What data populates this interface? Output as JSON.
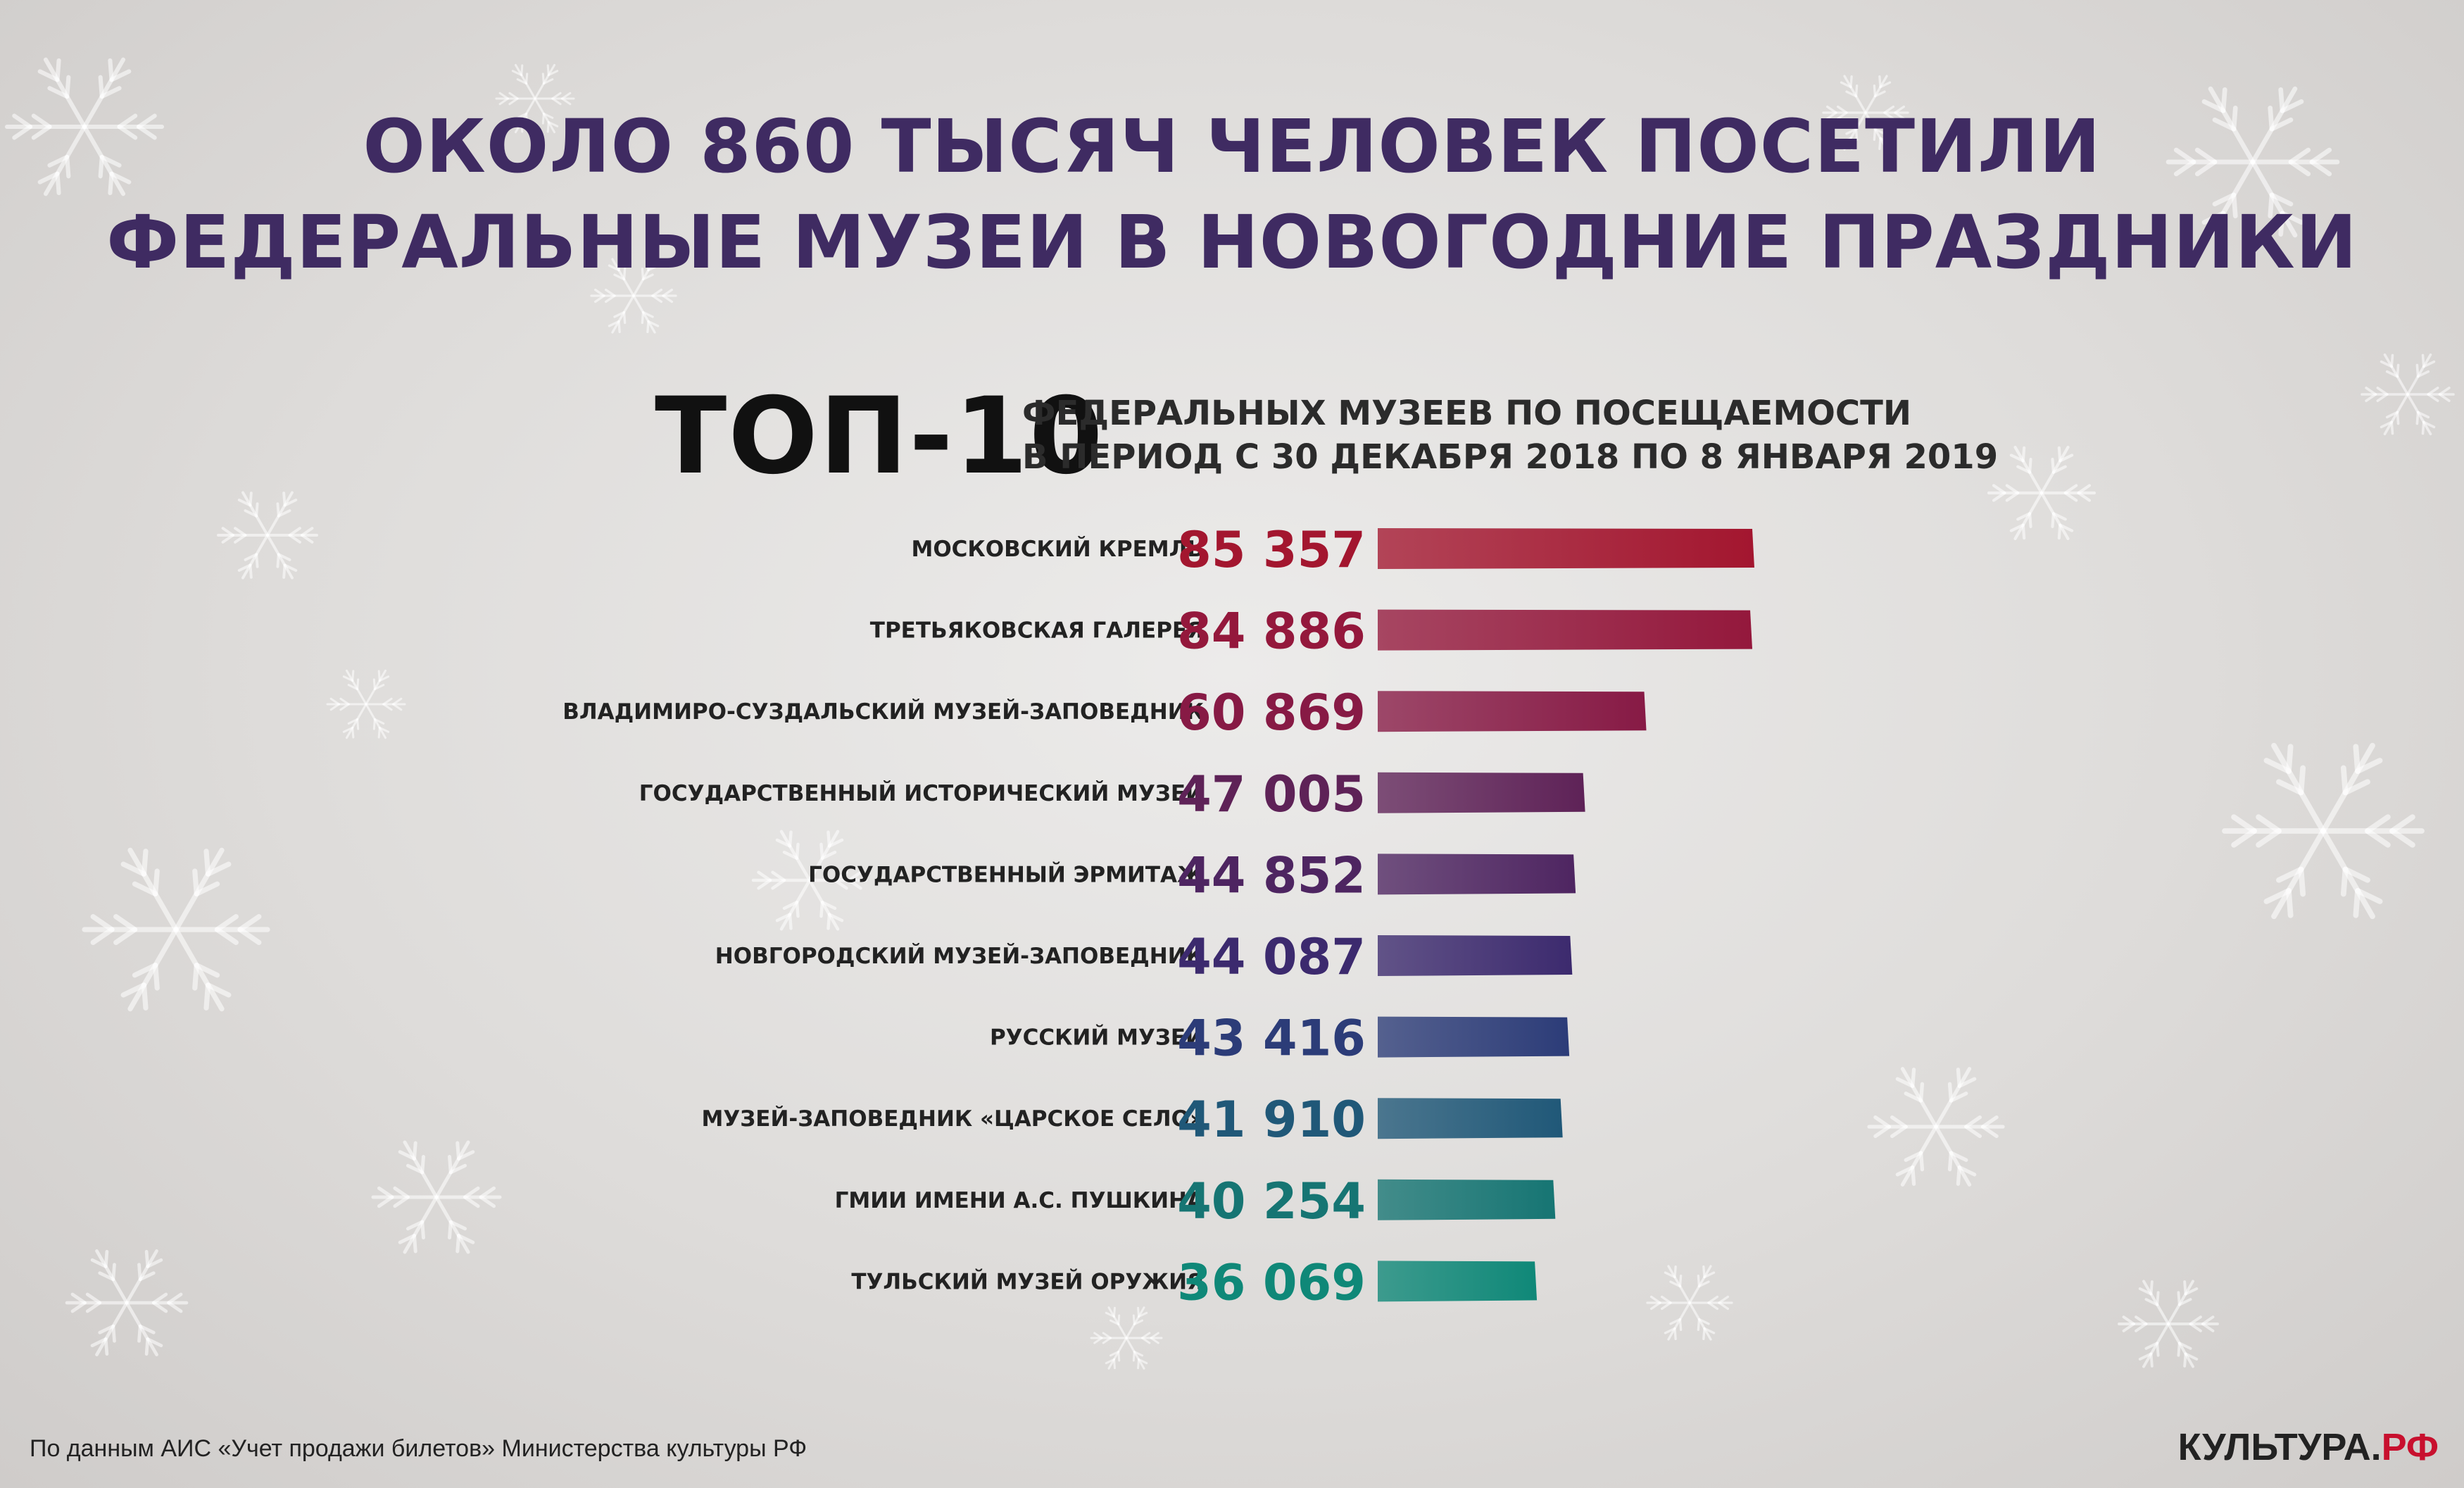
{
  "header": {
    "title_line1": "ОКОЛО 860 ТЫСЯЧ ЧЕЛОВЕК ПОСЕТИЛИ",
    "title_line2": "ФЕДЕРАЛЬНЫЕ МУЗЕИ В НОВОГОДНИЕ ПРАЗДНИКИ",
    "top_label": "ТОП-10",
    "subtitle_line1": "ФЕДЕРАЛЬНЫХ МУЗЕЕВ ПО ПОСЕЩАЕМОСТИ",
    "subtitle_line2": "В ПЕРИОД С 30 ДЕКАБРЯ 2018 ПО 8 ЯНВАРЯ 2019"
  },
  "chart_data": {
    "type": "bar",
    "orientation": "horizontal",
    "categories": [
      "МОСКОВСКИЙ КРЕМЛЬ",
      "ТРЕТЬЯКОВСКАЯ ГАЛЕРЕЯ",
      "ВЛАДИМИРО-СУЗДАЛЬСКИЙ МУЗЕЙ-ЗАПОВЕДНИК",
      "ГОСУДАРСТВЕННЫЙ ИСТОРИЧЕСКИЙ МУЗЕЙ",
      "ГОСУДАРСТВЕННЫЙ ЭРМИТАЖ",
      "НОВГОРОДСКИЙ МУЗЕЙ-ЗАПОВЕДНИК",
      "РУССКИЙ МУЗЕЙ",
      "МУЗЕЙ-ЗАПОВЕДНИК «ЦАРСКОЕ СЕЛО»",
      "ГМИИ ИМЕНИ А.С. ПУШКИНА",
      "ТУЛЬСКИЙ МУЗЕЙ ОРУЖИЯ"
    ],
    "values": [
      85357,
      84886,
      60869,
      47005,
      44852,
      44087,
      43416,
      41910,
      40254,
      36069
    ],
    "value_labels": [
      "85 357",
      "84 886",
      "60 869",
      "47 005",
      "44 852",
      "44 087",
      "43 416",
      "41 910",
      "40 254",
      "36 069"
    ],
    "colors": [
      "#a3162f",
      "#94183c",
      "#871a45",
      "#5e2257",
      "#4e2561",
      "#3c2a6e",
      "#2c3c78",
      "#205878",
      "#167573",
      "#0f8878"
    ],
    "xlim": [
      0,
      90000
    ],
    "grid": false,
    "legend": "none"
  },
  "footer": {
    "source": "По данным АИС «Учет продажи билетов»  Министерства культуры РФ",
    "brand_name": "КУЛЬТУРА.",
    "brand_tld": "РФ"
  }
}
